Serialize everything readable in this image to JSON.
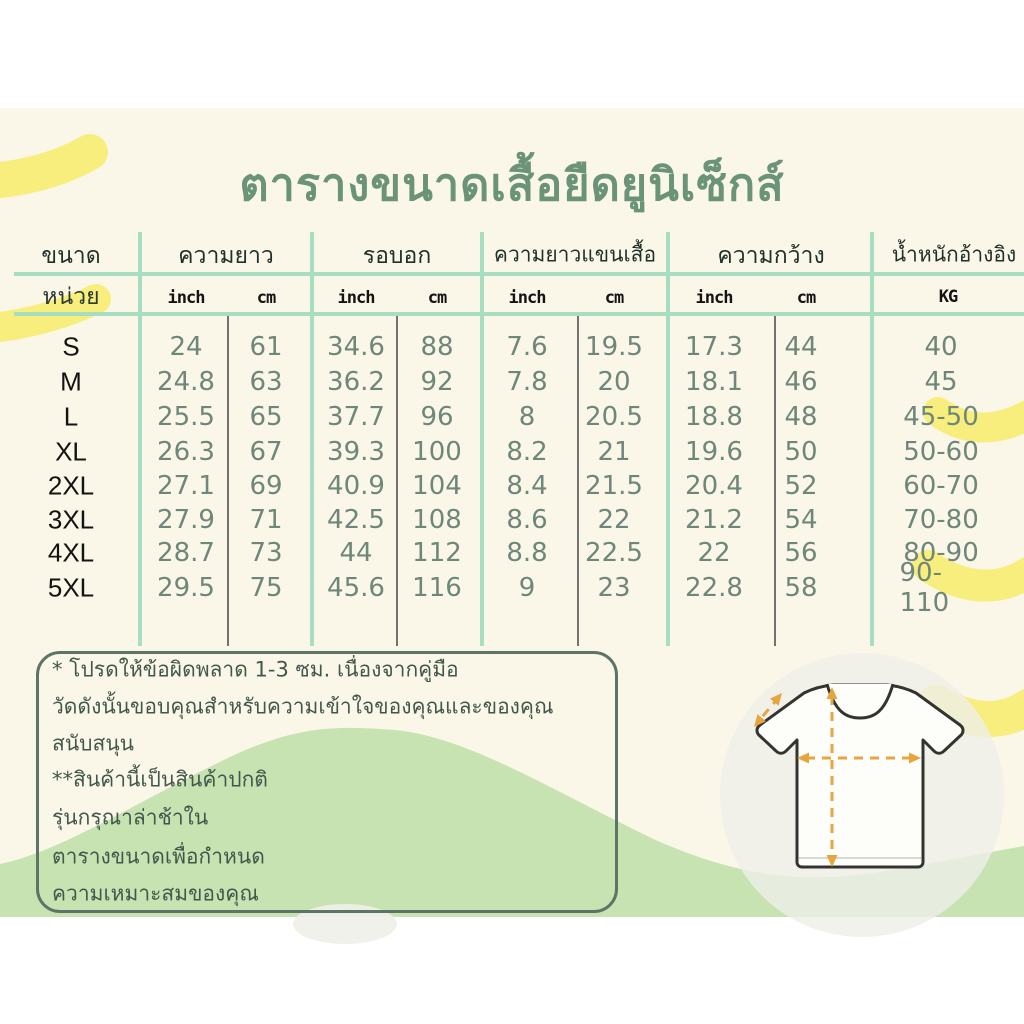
{
  "title": "ตารางขนาดเสื้อยืดยูนิเซ็กส์",
  "colors": {
    "background_cream": "#faf7e8",
    "grid_mint": "#a7dec2",
    "grid_gray": "#474747",
    "title_green": "#6a9377",
    "value_green": "#6e877a",
    "swoosh_yellow": "#f7ee7d",
    "wave_green": "#c8e3b2",
    "arrow_orange": "#e6a53e",
    "notes_border": "#5c7568"
  },
  "table": {
    "unit_row_label": "หน่วย",
    "columns": [
      {
        "label": "ขนาด"
      },
      {
        "label": "ความยาว",
        "units": [
          "inch",
          "cm"
        ]
      },
      {
        "label": "รอบอก",
        "units": [
          "inch",
          "cm"
        ]
      },
      {
        "label": "ความยาวแขนเสื้อ",
        "units": [
          "inch",
          "cm"
        ]
      },
      {
        "label": "ความกว้าง",
        "units": [
          "inch",
          "cm"
        ]
      },
      {
        "label": "น้ำหนักอ้างอิง",
        "units": [
          "KG"
        ]
      }
    ],
    "units": [
      "inch",
      "cm",
      "inch",
      "cm",
      "inch",
      "cm",
      "inch",
      "cm",
      "KG"
    ],
    "rows": [
      {
        "size": "S",
        "length_inch": "24",
        "length_cm": "61",
        "chest_inch": "34.6",
        "chest_cm": "88",
        "sleeve_inch": "7.6",
        "sleeve_cm": "19.5",
        "width_inch": "17.3",
        "width_cm": "44",
        "weight_kg": "40"
      },
      {
        "size": "M",
        "length_inch": "24.8",
        "length_cm": "63",
        "chest_inch": "36.2",
        "chest_cm": "92",
        "sleeve_inch": "7.8",
        "sleeve_cm": "20",
        "width_inch": "18.1",
        "width_cm": "46",
        "weight_kg": "45"
      },
      {
        "size": "L",
        "length_inch": "25.5",
        "length_cm": "65",
        "chest_inch": "37.7",
        "chest_cm": "96",
        "sleeve_inch": "8",
        "sleeve_cm": "20.5",
        "width_inch": "18.8",
        "width_cm": "48",
        "weight_kg": "45-50"
      },
      {
        "size": "XL",
        "length_inch": "26.3",
        "length_cm": "67",
        "chest_inch": "39.3",
        "chest_cm": "100",
        "sleeve_inch": "8.2",
        "sleeve_cm": "21",
        "width_inch": "19.6",
        "width_cm": "50",
        "weight_kg": "50-60"
      },
      {
        "size": "2XL",
        "length_inch": "27.1",
        "length_cm": "69",
        "chest_inch": "40.9",
        "chest_cm": "104",
        "sleeve_inch": "8.4",
        "sleeve_cm": "21.5",
        "width_inch": "20.4",
        "width_cm": "52",
        "weight_kg": "60-70"
      },
      {
        "size": "3XL",
        "length_inch": "27.9",
        "length_cm": "71",
        "chest_inch": "42.5",
        "chest_cm": "108",
        "sleeve_inch": "8.6",
        "sleeve_cm": "22",
        "width_inch": "21.2",
        "width_cm": "54",
        "weight_kg": "70-80"
      },
      {
        "size": "4XL",
        "length_inch": "28.7",
        "length_cm": "73",
        "chest_inch": "44",
        "chest_cm": "112",
        "sleeve_inch": "8.8",
        "sleeve_cm": "22.5",
        "width_inch": "22",
        "width_cm": "56",
        "weight_kg": "80-90"
      },
      {
        "size": "5XL",
        "length_inch": "29.5",
        "length_cm": "75",
        "chest_inch": "45.6",
        "chest_cm": "116",
        "sleeve_inch": "9",
        "sleeve_cm": "23",
        "width_inch": "22.8",
        "width_cm": "58",
        "weight_kg": "90-110"
      }
    ]
  },
  "notes": {
    "lines": [
      "* โปรดให้ข้อผิดพลาด 1-3 ซม. เนื่องจากคู่มือ",
      "วัดดังนั้นขอบคุณสำหรับความเข้าใจของคุณและของคุณ",
      "สนับสนุน",
      "**สินค้านี้เป็นสินค้าปกติ",
      "รุ่นกรุณาล่าช้าใน",
      "ตารางขนาดเพื่อกำหนด",
      "ความเหมาะสมของคุณ"
    ]
  },
  "chart_data": {
    "type": "table",
    "title": "ตารางขนาดเสื้อยืดยูนิเซ็กส์",
    "columns": [
      "ขนาด",
      "ความยาว inch",
      "ความยาว cm",
      "รอบอก inch",
      "รอบอก cm",
      "ความยาวแขนเสื้อ inch",
      "ความยาวแขนเสื้อ cm",
      "ความกว้าง inch",
      "ความกว้าง cm",
      "น้ำหนักอ้างอิง KG"
    ],
    "rows": [
      [
        "S",
        "24",
        "61",
        "34.6",
        "88",
        "7.6",
        "19.5",
        "17.3",
        "44",
        "40"
      ],
      [
        "M",
        "24.8",
        "63",
        "36.2",
        "92",
        "7.8",
        "20",
        "18.1",
        "46",
        "45"
      ],
      [
        "L",
        "25.5",
        "65",
        "37.7",
        "96",
        "8",
        "20.5",
        "18.8",
        "48",
        "45-50"
      ],
      [
        "XL",
        "26.3",
        "67",
        "39.3",
        "100",
        "8.2",
        "21",
        "19.6",
        "50",
        "50-60"
      ],
      [
        "2XL",
        "27.1",
        "69",
        "40.9",
        "104",
        "8.4",
        "21.5",
        "20.4",
        "52",
        "60-70"
      ],
      [
        "3XL",
        "27.9",
        "71",
        "42.5",
        "108",
        "8.6",
        "22",
        "21.2",
        "54",
        "70-80"
      ],
      [
        "4XL",
        "28.7",
        "73",
        "44",
        "112",
        "8.8",
        "22.5",
        "22",
        "56",
        "80-90"
      ],
      [
        "5XL",
        "29.5",
        "75",
        "45.6",
        "116",
        "9",
        "23",
        "22.8",
        "58",
        "90-110"
      ]
    ]
  }
}
